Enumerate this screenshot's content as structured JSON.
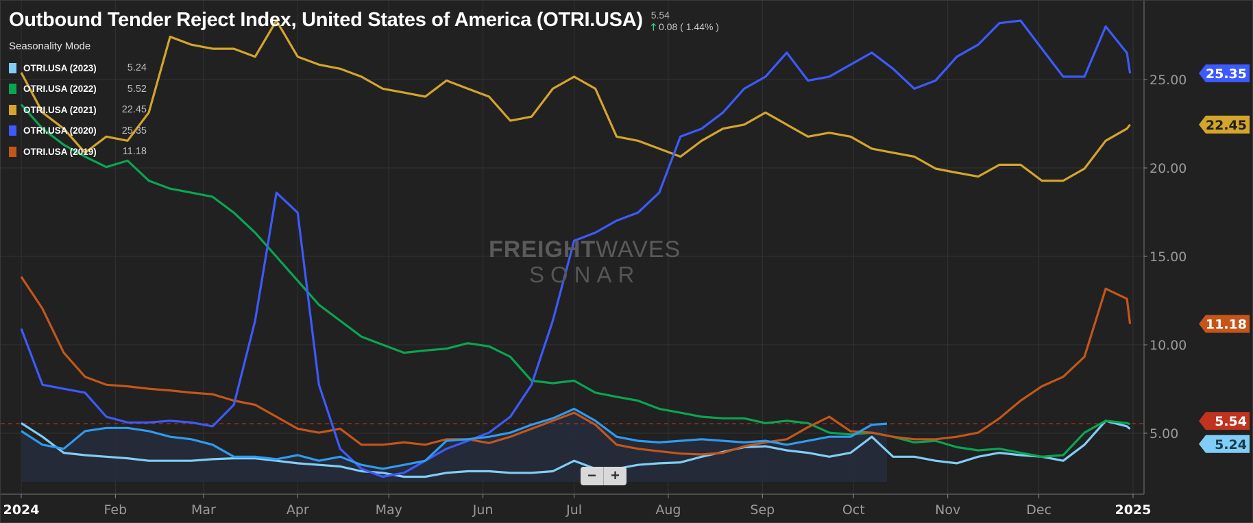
{
  "header": {
    "title": "Outbound Tender Reject Index, United States of America (OTRI.USA)",
    "last_value": "5.54",
    "change": "0.08 ( 1.44% )",
    "change_direction": "up",
    "change_color": "#3ecf8e"
  },
  "legend": {
    "mode_label": "Seasonality Mode",
    "items": [
      {
        "label": "OTRI.USA (2023)",
        "value": "5.24",
        "color": "#80cef7"
      },
      {
        "label": "OTRI.USA (2022)",
        "value": "5.52",
        "color": "#0aa552"
      },
      {
        "label": "OTRI.USA (2021)",
        "value": "22.45",
        "color": "#d4a52c"
      },
      {
        "label": "OTRI.USA (2020)",
        "value": "25.35",
        "color": "#3d5afe"
      },
      {
        "label": "OTRI.USA (2019)",
        "value": "11.18",
        "color": "#c4561a"
      }
    ]
  },
  "watermark": {
    "line1_bold": "FREIGHT",
    "line1_thin": "WAVES",
    "line2": "SONAR"
  },
  "zoom_controls": {
    "minus": "−",
    "plus": "+"
  },
  "chart_data": {
    "type": "line",
    "title": "Outbound Tender Reject Index, United States of America (OTRI.USA)",
    "xlim": [
      "2024-01-01",
      "2025-01-01"
    ],
    "ylim": [
      1.4,
      29.5
    ],
    "y_axis_position": "right",
    "grid": true,
    "legend_position": "top-left",
    "x_ticks": [
      {
        "date": "2024-01-01",
        "label": "2024"
      },
      {
        "date": "2024-02-01",
        "label": "Feb"
      },
      {
        "date": "2024-03-01",
        "label": "Mar"
      },
      {
        "date": "2024-04-01",
        "label": "Apr"
      },
      {
        "date": "2024-05-01",
        "label": "May"
      },
      {
        "date": "2024-06-01",
        "label": "Jun"
      },
      {
        "date": "2024-07-01",
        "label": "Jul"
      },
      {
        "date": "2024-08-01",
        "label": "Aug"
      },
      {
        "date": "2024-09-01",
        "label": "Sep"
      },
      {
        "date": "2024-10-01",
        "label": "Oct"
      },
      {
        "date": "2024-11-01",
        "label": "Nov"
      },
      {
        "date": "2024-12-01",
        "label": "Dec"
      },
      {
        "date": "2025-01-01",
        "label": "2025"
      }
    ],
    "y_ticks": [
      {
        "value": 5,
        "label": "5.00"
      },
      {
        "value": 10,
        "label": "10.00"
      },
      {
        "value": 15,
        "label": "15.00"
      },
      {
        "value": 20,
        "label": "20.00"
      },
      {
        "value": 25,
        "label": "25.00"
      }
    ],
    "reference_line": {
      "value": 5.54,
      "label": "5.54",
      "color": "#c0341f",
      "style": "dashed"
    },
    "dates": [
      "2024-01-01",
      "2024-01-08",
      "2024-01-15",
      "2024-01-22",
      "2024-01-29",
      "2024-02-05",
      "2024-02-12",
      "2024-02-19",
      "2024-02-26",
      "2024-03-04",
      "2024-03-11",
      "2024-03-18",
      "2024-03-25",
      "2024-04-01",
      "2024-04-08",
      "2024-04-15",
      "2024-04-22",
      "2024-04-29",
      "2024-05-06",
      "2024-05-13",
      "2024-05-20",
      "2024-05-27",
      "2024-06-03",
      "2024-06-10",
      "2024-06-17",
      "2024-06-24",
      "2024-07-01",
      "2024-07-08",
      "2024-07-15",
      "2024-07-22",
      "2024-07-29",
      "2024-08-05",
      "2024-08-12",
      "2024-08-19",
      "2024-08-26",
      "2024-09-02",
      "2024-09-09",
      "2024-09-16",
      "2024-09-23",
      "2024-09-30",
      "2024-10-07",
      "2024-10-14",
      "2024-10-21",
      "2024-10-28",
      "2024-11-04",
      "2024-11-11",
      "2024-11-18",
      "2024-11-25",
      "2024-12-02",
      "2024-12-09",
      "2024-12-16",
      "2024-12-23",
      "2024-12-30",
      "2024-12-31"
    ],
    "series": [
      {
        "name": "OTRI.USA (2019)",
        "color": "#c4561a",
        "last_label": "11.18",
        "values": [
          13.85,
          12.04,
          9.55,
          8.19,
          7.74,
          7.65,
          7.51,
          7.42,
          7.29,
          7.2,
          6.84,
          6.61,
          5.93,
          5.25,
          5.03,
          5.25,
          4.35,
          4.35,
          4.48,
          4.35,
          4.66,
          4.66,
          4.44,
          4.8,
          5.25,
          5.7,
          6.16,
          5.48,
          4.35,
          4.12,
          3.98,
          3.85,
          3.8,
          3.89,
          4.26,
          4.48,
          4.66,
          5.34,
          5.93,
          5.11,
          5.03,
          4.8,
          4.66,
          4.66,
          4.8,
          5.03,
          5.84,
          6.84,
          7.65,
          8.19,
          9.32,
          13.17,
          12.6,
          11.18
        ]
      },
      {
        "name": "OTRI.USA (2020)",
        "color": "#3d5afe",
        "last_label": "25.35",
        "values": [
          10.91,
          7.74,
          7.51,
          7.29,
          5.93,
          5.61,
          5.61,
          5.7,
          5.61,
          5.39,
          6.61,
          11.36,
          18.6,
          17.47,
          7.74,
          4.12,
          2.99,
          2.54,
          2.76,
          3.44,
          4.12,
          4.57,
          5.03,
          5.93,
          7.74,
          11.36,
          15.88,
          16.34,
          17.02,
          17.47,
          18.6,
          21.77,
          22.22,
          23.13,
          24.48,
          25.16,
          26.52,
          24.94,
          25.16,
          25.84,
          26.52,
          25.61,
          24.48,
          24.94,
          26.29,
          26.97,
          28.19,
          28.33,
          26.74,
          25.16,
          25.16,
          28.0,
          26.5,
          25.35
        ]
      },
      {
        "name": "OTRI.USA (2021)",
        "color": "#d4a52c",
        "last_label": "22.45",
        "values": [
          25.39,
          23.13,
          22.22,
          20.86,
          21.77,
          21.54,
          23.13,
          27.42,
          26.97,
          26.74,
          26.74,
          26.29,
          28.33,
          26.29,
          25.84,
          25.61,
          25.16,
          24.48,
          24.26,
          24.03,
          24.94,
          24.48,
          24.03,
          22.67,
          22.9,
          24.48,
          25.16,
          24.48,
          21.77,
          21.54,
          21.09,
          20.64,
          21.54,
          22.22,
          22.45,
          23.13,
          22.45,
          21.77,
          21.99,
          21.77,
          21.09,
          20.86,
          20.64,
          19.96,
          19.73,
          19.51,
          20.18,
          20.18,
          19.28,
          19.28,
          19.96,
          21.54,
          22.22,
          22.45
        ]
      },
      {
        "name": "OTRI.USA (2022)",
        "color": "#0aa552",
        "last_label": "5.52",
        "values": [
          23.58,
          22.22,
          21.31,
          20.64,
          20.05,
          20.41,
          19.28,
          18.83,
          18.6,
          18.37,
          17.47,
          16.34,
          14.98,
          13.62,
          12.26,
          11.36,
          10.46,
          10.0,
          9.55,
          9.68,
          9.78,
          10.09,
          9.91,
          9.32,
          7.97,
          7.83,
          7.97,
          7.29,
          7.06,
          6.84,
          6.38,
          6.16,
          5.93,
          5.84,
          5.84,
          5.57,
          5.7,
          5.57,
          5.03,
          4.93,
          5.03,
          4.8,
          4.48,
          4.57,
          4.21,
          4.03,
          4.12,
          3.89,
          3.67,
          3.76,
          5.03,
          5.7,
          5.57,
          5.52
        ]
      },
      {
        "name": "OTRI.USA (2023)",
        "color": "#80cef7",
        "last_label": "5.24",
        "values": [
          5.57,
          4.8,
          3.89,
          3.76,
          3.67,
          3.58,
          3.44,
          3.44,
          3.44,
          3.53,
          3.58,
          3.58,
          3.44,
          3.3,
          3.21,
          3.12,
          2.85,
          2.76,
          2.54,
          2.54,
          2.76,
          2.85,
          2.85,
          2.76,
          2.76,
          2.85,
          3.44,
          2.99,
          2.99,
          3.21,
          3.3,
          3.35,
          3.67,
          3.94,
          4.21,
          4.26,
          4.03,
          3.89,
          3.67,
          3.89,
          4.8,
          3.67,
          3.67,
          3.44,
          3.3,
          3.67,
          3.89,
          3.76,
          3.67,
          3.44,
          4.35,
          5.7,
          5.39,
          5.24
        ]
      }
    ],
    "current_series": {
      "color": "#2f9bf0",
      "fill": "#252b3a",
      "last_label": "5.54",
      "dates": [
        "2024-01-01",
        "2024-01-08",
        "2024-01-15",
        "2024-01-22",
        "2024-01-29",
        "2024-02-05",
        "2024-02-12",
        "2024-02-19",
        "2024-02-26",
        "2024-03-04",
        "2024-03-11",
        "2024-03-18",
        "2024-03-25",
        "2024-04-01",
        "2024-04-08",
        "2024-04-15",
        "2024-04-22",
        "2024-04-29",
        "2024-05-06",
        "2024-05-13",
        "2024-05-20",
        "2024-05-27",
        "2024-06-03",
        "2024-06-10",
        "2024-06-17",
        "2024-06-24",
        "2024-07-01",
        "2024-07-08",
        "2024-07-15",
        "2024-07-22",
        "2024-07-29",
        "2024-08-05",
        "2024-08-12",
        "2024-08-19",
        "2024-08-26",
        "2024-09-02",
        "2024-09-09",
        "2024-09-16",
        "2024-09-23",
        "2024-09-30",
        "2024-10-07",
        "2024-10-12"
      ],
      "values": [
        5.12,
        4.35,
        4.12,
        5.12,
        5.3,
        5.3,
        5.12,
        4.8,
        4.66,
        4.35,
        3.67,
        3.67,
        3.53,
        3.76,
        3.44,
        3.67,
        3.21,
        2.99,
        3.21,
        3.44,
        4.57,
        4.66,
        4.8,
        5.03,
        5.48,
        5.84,
        6.38,
        5.7,
        4.8,
        4.57,
        4.48,
        4.57,
        4.66,
        4.57,
        4.48,
        4.57,
        4.35,
        4.57,
        4.8,
        4.8,
        5.48,
        5.54
      ]
    }
  }
}
